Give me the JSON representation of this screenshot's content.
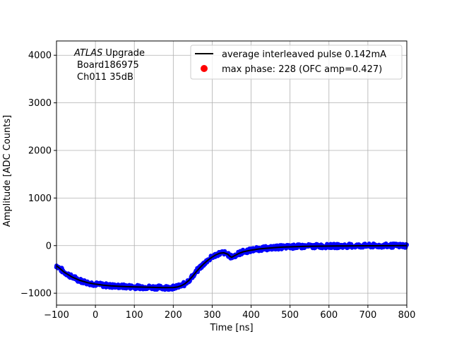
{
  "chart_data": {
    "type": "scatter",
    "title": "",
    "xlabel": "Time [ns]",
    "ylabel": "Amplitude [ADC Counts]",
    "xlim": [
      -100,
      800
    ],
    "ylim": [
      -1250,
      4300
    ],
    "grid": true,
    "x_ticks": [
      -100,
      0,
      100,
      200,
      300,
      400,
      500,
      600,
      700,
      800
    ],
    "x_tick_labels": [
      "−100",
      "0",
      "100",
      "200",
      "300",
      "400",
      "500",
      "600",
      "700",
      "800"
    ],
    "y_ticks": [
      -1000,
      0,
      1000,
      2000,
      3000,
      4000
    ],
    "y_tick_labels": [
      "−1000",
      "0",
      "1000",
      "2000",
      "3000",
      "4000"
    ],
    "annotation": {
      "italic": "ATLAS",
      "line1_rest": " Upgrade",
      "line2": "Board186975",
      "line3": "Ch011 35dB"
    },
    "legend": {
      "position": "top-right",
      "entries": [
        {
          "label": "average interleaved pulse 0.142mA",
          "style": "line",
          "color": "#000000"
        },
        {
          "label": "max phase: 228 (OFC amp=0.427)",
          "style": "dot",
          "color": "#ff0000"
        }
      ]
    },
    "series": [
      {
        "name": "average interleaved pulse 0.142mA",
        "kind": "line",
        "color": "#000000",
        "x": [
          -100,
          -80,
          -60,
          -40,
          -20,
          0,
          20,
          40,
          60,
          80,
          100,
          120,
          140,
          160,
          180,
          200,
          210,
          220,
          230,
          240,
          250,
          260,
          270,
          280,
          290,
          300,
          310,
          320,
          330,
          340,
          345,
          350,
          360,
          370,
          380,
          400,
          420,
          440,
          460,
          480,
          500,
          520,
          540,
          560,
          580,
          600,
          620,
          640,
          660,
          680,
          700,
          720,
          740,
          760,
          780,
          800
        ],
        "y": [
          -420,
          -560,
          -660,
          -730,
          -780,
          -810,
          -830,
          -845,
          -855,
          -862,
          -868,
          -872,
          -876,
          -880,
          -882,
          -880,
          -870,
          -845,
          -800,
          -730,
          -640,
          -540,
          -450,
          -370,
          -300,
          -240,
          -190,
          -160,
          -150,
          -180,
          -220,
          -245,
          -200,
          -160,
          -130,
          -95,
          -70,
          -55,
          -42,
          -32,
          -25,
          -20,
          -16,
          -13,
          -11,
          -9,
          -8,
          -6,
          -5,
          -4,
          -3,
          -3,
          -2,
          -2,
          -1,
          -1
        ]
      },
      {
        "name": "",
        "kind": "scatter",
        "color": "#0000ff",
        "x": [
          -100,
          -80,
          -60,
          -40,
          -20,
          0,
          20,
          40,
          60,
          80,
          100,
          120,
          140,
          160,
          180,
          200,
          210,
          220,
          230,
          240,
          250,
          260,
          270,
          280,
          290,
          300,
          310,
          320,
          330,
          340,
          345,
          350,
          360,
          370,
          380,
          400,
          420,
          440,
          460,
          480,
          500,
          520,
          540,
          560,
          580,
          600,
          620,
          640,
          660,
          680,
          700,
          720,
          740,
          760,
          780,
          800
        ],
        "y": [
          -420,
          -560,
          -660,
          -730,
          -780,
          -810,
          -830,
          -845,
          -855,
          -862,
          -868,
          -872,
          -876,
          -880,
          -882,
          -880,
          -870,
          -845,
          -800,
          -730,
          -640,
          -540,
          -450,
          -370,
          -300,
          -240,
          -190,
          -160,
          -150,
          -180,
          -220,
          -245,
          -200,
          -160,
          -130,
          -95,
          -70,
          -55,
          -42,
          -32,
          -25,
          -20,
          -16,
          -13,
          -11,
          -9,
          -8,
          -6,
          -5,
          -4,
          -3,
          -3,
          -2,
          -2,
          -1,
          -1
        ],
        "spread": 45
      },
      {
        "name": "max phase: 228 (OFC amp=0.427)",
        "kind": "scatter",
        "color": "#ff0000",
        "x": [],
        "y": []
      }
    ]
  }
}
